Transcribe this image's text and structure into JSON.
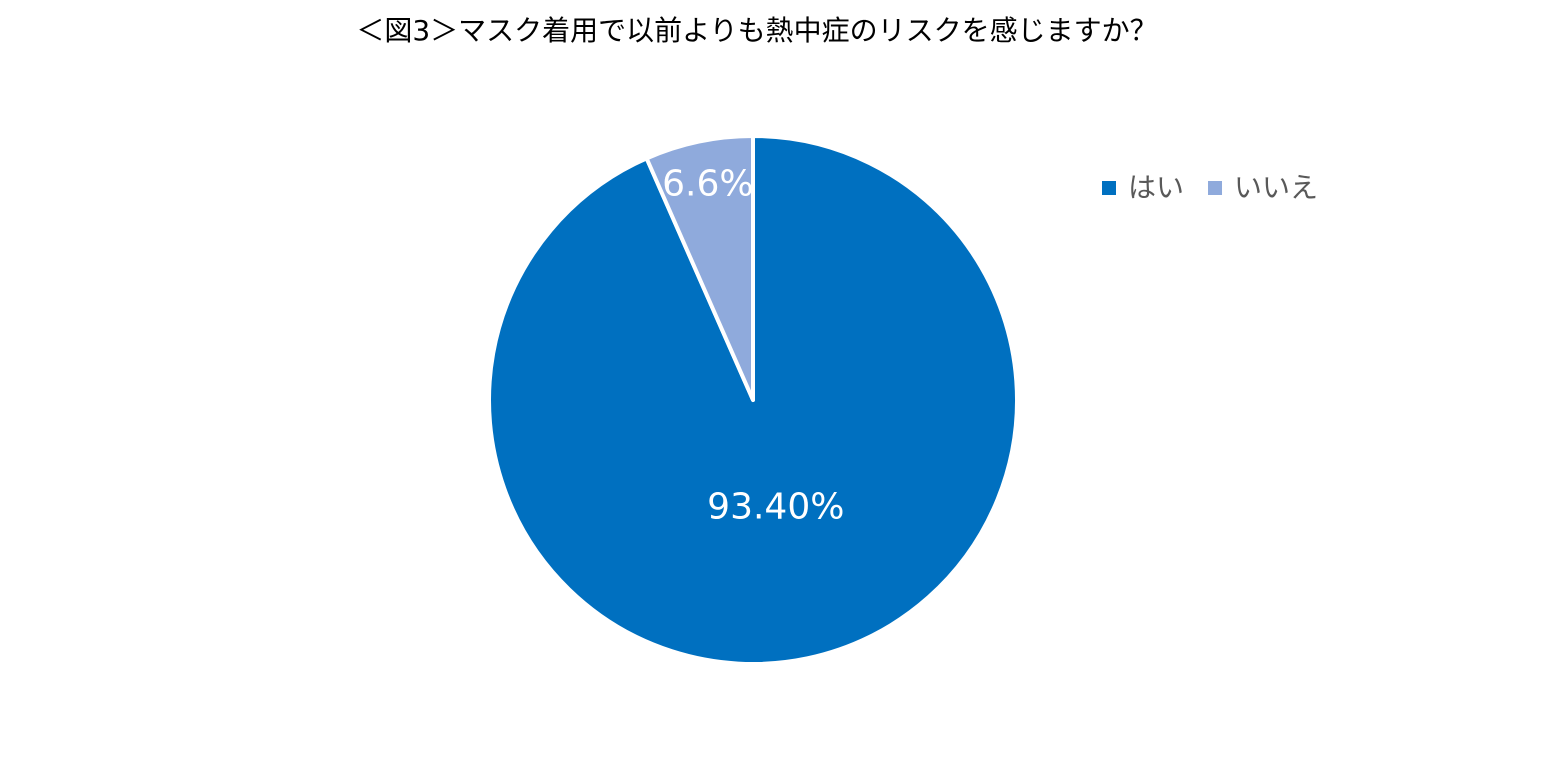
{
  "chart_data": {
    "type": "pie",
    "title": "＜図3＞マスク着用で以前よりも熱中症のリスクを感じますか？",
    "categories": [
      "はい",
      "いいえ"
    ],
    "values": [
      93.4,
      6.6
    ],
    "value_labels": [
      "93.40%",
      "6.6%"
    ],
    "colors": [
      "#0070c0",
      "#8faadc"
    ],
    "legend": "right"
  }
}
